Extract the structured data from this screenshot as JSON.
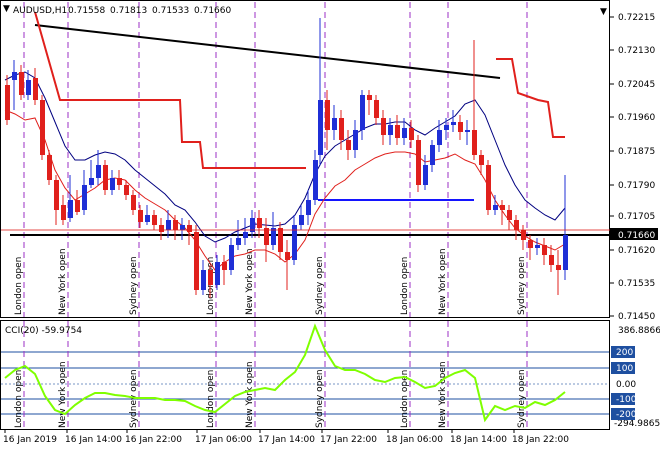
{
  "header": {
    "symbol": "AUDUSD,H1",
    "open": "0.71558",
    "high": "0.71813",
    "low": "0.71533",
    "close": "0.71660"
  },
  "price_axis": {
    "ticks": [
      "0.72215",
      "0.72130",
      "0.72045",
      "0.71960",
      "0.71875",
      "0.71790",
      "0.71705",
      "0.71620",
      "0.71535",
      "0.71450"
    ],
    "current_price": "0.71660"
  },
  "cci": {
    "label": "CCI(20) -59.9754",
    "max_label": "386.8866",
    "min_label": "-294.9865",
    "ticks": [
      "200",
      "100",
      "0.00",
      "-100",
      "-200"
    ]
  },
  "time_axis": [
    "16 Jan 2019",
    "16 Jan 14:00",
    "16 Jan 22:00",
    "17 Jan 06:00",
    "17 Jan 14:00",
    "17 Jan 22:00",
    "18 Jan 06:00",
    "18 Jan 14:00",
    "18 Jan 22:00"
  ],
  "sessions": [
    {
      "label": "London open"
    },
    {
      "label": "New York open"
    },
    {
      "label": "Sydney open"
    },
    {
      "label": "London open"
    },
    {
      "label": "New York open"
    },
    {
      "label": "Sydney open"
    },
    {
      "label": "London open"
    },
    {
      "label": "New York open"
    },
    {
      "label": "Sydney open"
    }
  ],
  "colors": {
    "bull": "#1f2fd6",
    "bear": "#e0201c",
    "ma_fast": "#000080",
    "ma_slow": "#e0201c",
    "stop_line": "#e0201c",
    "blue_level": "#1414ff",
    "trendline": "#000000",
    "hline": "#000000",
    "session_line": "#9b2fc4",
    "cci_line": "#7fff00",
    "cci_level": "#1e4fa0"
  },
  "chart_data": {
    "type": "candlestick",
    "x_start": "16 Jan 2019",
    "x_end": "18 Jan 22:00",
    "ylim": [
      0.7145,
      0.72215
    ],
    "cci_ylim": [
      -294.9865,
      386.8866
    ]
  }
}
